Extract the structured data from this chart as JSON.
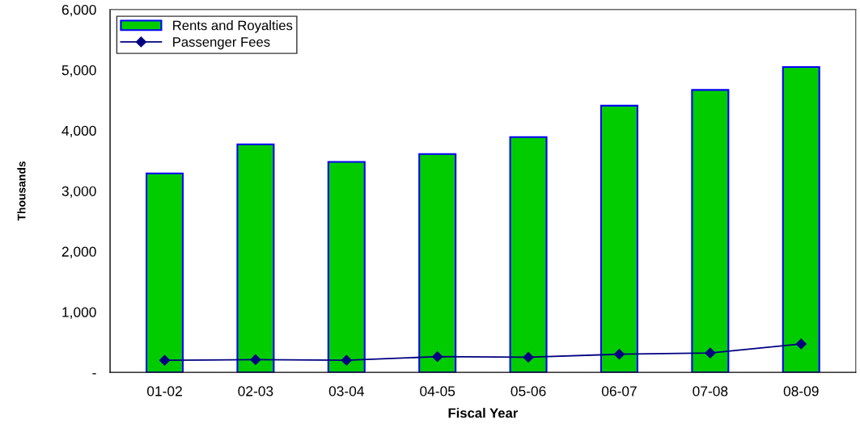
{
  "chart_data": {
    "type": "bar",
    "xlabel": "Fiscal Year",
    "ylabel": "Thousands",
    "categories": [
      "01-02",
      "02-03",
      "03-04",
      "04-05",
      "05-06",
      "06-07",
      "07-08",
      "08-09"
    ],
    "series": [
      {
        "name": "Rents and Royalties",
        "color": "#00cc00",
        "values": [
          3290,
          3770,
          3480,
          3610,
          3890,
          4410,
          4670,
          5050
        ]
      },
      {
        "name": "Passenger Fees",
        "type": "line",
        "color": "#000080",
        "marker": "diamond",
        "values": [
          200,
          210,
          200,
          260,
          250,
          300,
          320,
          470
        ]
      }
    ],
    "ylim": [
      0,
      6000
    ],
    "yticks": [
      {
        "value": 0,
        "label": "-"
      },
      {
        "value": 1000,
        "label": "1,000"
      },
      {
        "value": 2000,
        "label": "2,000"
      },
      {
        "value": 3000,
        "label": "3,000"
      },
      {
        "value": 4000,
        "label": "4,000"
      },
      {
        "value": 5000,
        "label": "5,000"
      },
      {
        "value": 6000,
        "label": "6,000"
      }
    ],
    "grid": false,
    "legend": "top left"
  }
}
